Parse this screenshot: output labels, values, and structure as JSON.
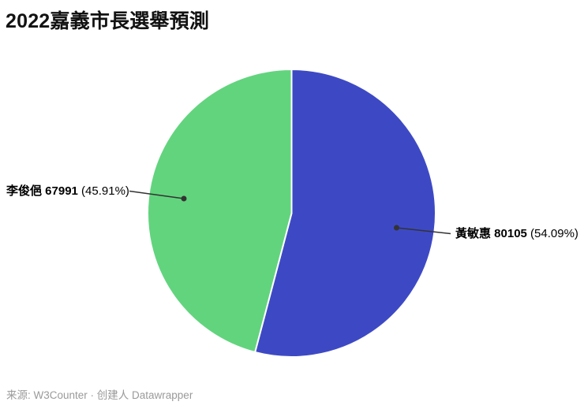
{
  "header": {
    "title": "2022嘉義市長選舉預測"
  },
  "chart_data": {
    "type": "pie",
    "title": "2022嘉義市長選舉預測",
    "start_angle": 0,
    "direction": "clockwise",
    "slices": [
      {
        "name": "黃敏惠",
        "value": 80105,
        "percent": 54.09,
        "color": "#3d49c4"
      },
      {
        "name": "李俊俋",
        "value": 67991,
        "percent": 45.91,
        "color": "#62d47e"
      }
    ],
    "slice_separator_color": "#ffffff",
    "connector_color": "#333333",
    "source": "W3Counter",
    "creator": "Datawrapper"
  },
  "labels": {
    "left": {
      "bold": "李俊俋 67991",
      "pct_text": " (45.91%)"
    },
    "right": {
      "bold": "黃敏惠 80105",
      "pct_text": " (54.09%)"
    }
  },
  "footer": {
    "text": "来源: W3Counter · 创建人 Datawrapper"
  }
}
